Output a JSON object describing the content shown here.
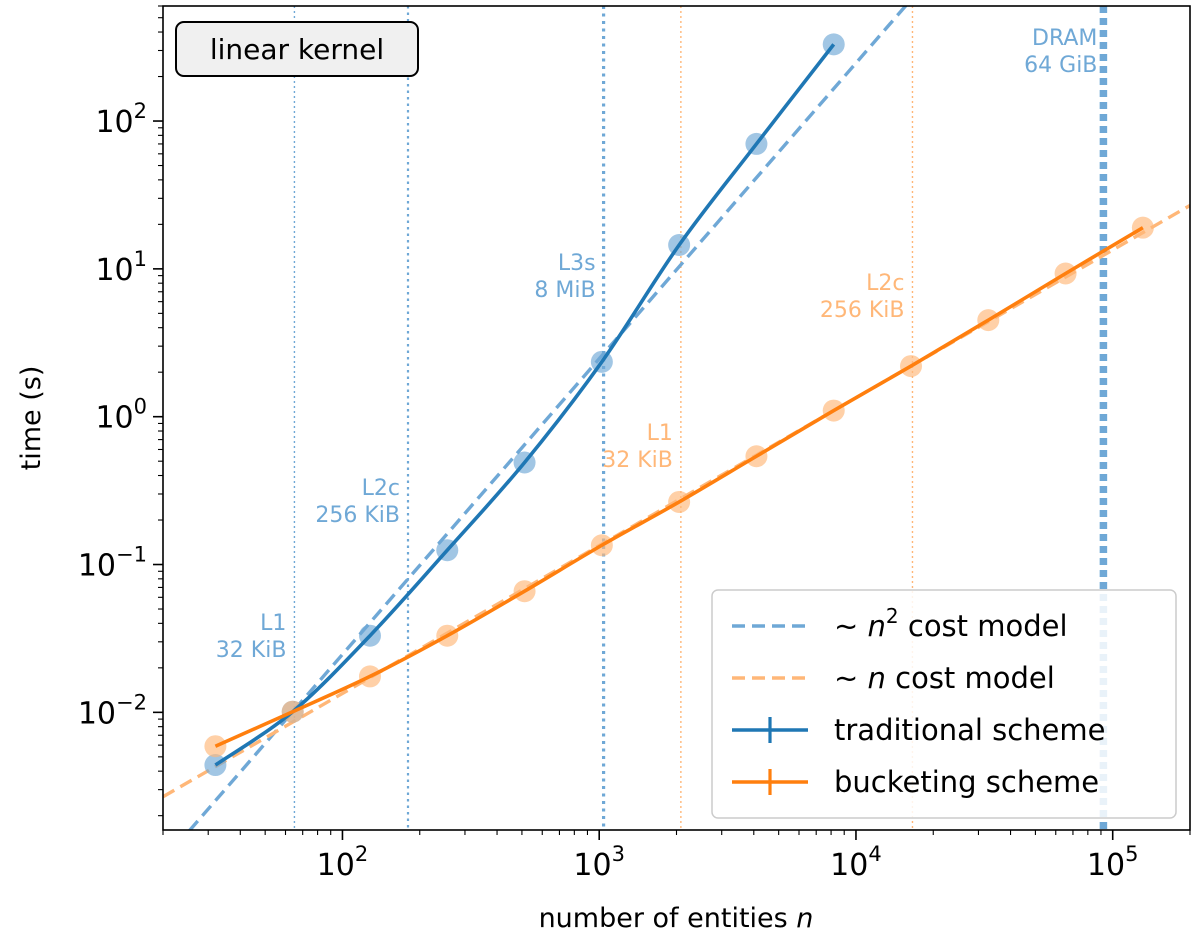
{
  "colors": {
    "traditional": "#1f77b4",
    "bucketing": "#ff7f0e",
    "traditional_light": "#6fa8d6",
    "bucketing_light": "#ffb778",
    "frame": "#000000"
  },
  "chart_data": {
    "type": "line",
    "x_scale": "log",
    "y_scale": "log",
    "xlabel": "number of entities n",
    "ylabel": "time (s)",
    "xlim": [
      20,
      200000
    ],
    "ylim": [
      0.0016,
      600
    ],
    "x_ticks": [
      {
        "value": 100,
        "base": "10",
        "exp": "2"
      },
      {
        "value": 1000,
        "base": "10",
        "exp": "3"
      },
      {
        "value": 10000,
        "base": "10",
        "exp": "4"
      },
      {
        "value": 100000,
        "base": "10",
        "exp": "5"
      }
    ],
    "y_ticks": [
      {
        "value": 0.01,
        "base": "10",
        "exp": "−2"
      },
      {
        "value": 0.1,
        "base": "10",
        "exp": "−1"
      },
      {
        "value": 1,
        "base": "10",
        "exp": "0"
      },
      {
        "value": 10,
        "base": "10",
        "exp": "1"
      },
      {
        "value": 100,
        "base": "10",
        "exp": "2"
      }
    ],
    "annotation": "linear kernel",
    "series": [
      {
        "name": "traditional scheme",
        "x": [
          32,
          64,
          128,
          256,
          512,
          1024,
          2048,
          4096,
          8192
        ],
        "y": [
          0.0044,
          0.0101,
          0.033,
          0.125,
          0.49,
          2.35,
          14.5,
          70,
          330
        ]
      },
      {
        "name": "bucketing scheme",
        "x": [
          32,
          64,
          128,
          256,
          512,
          1024,
          2048,
          4096,
          8192,
          16384,
          32768,
          65536,
          131072
        ],
        "y": [
          0.0059,
          0.0101,
          0.0175,
          0.033,
          0.066,
          0.135,
          0.265,
          0.54,
          1.1,
          2.2,
          4.5,
          9.3,
          19
        ]
      }
    ],
    "cost_models": [
      {
        "name": "~ n² cost model",
        "label_prefix": "∼",
        "label_var": "n",
        "label_power": "2",
        "label_suffix": "cost model",
        "exponent": 2,
        "x_ref": 64,
        "y_ref": 0.0101
      },
      {
        "name": "~ n cost model",
        "label_prefix": "∼",
        "label_var": "n",
        "label_power": "",
        "label_suffix": "cost model",
        "exponent": 1,
        "x_ref": 8192,
        "y_ref": 1.1
      }
    ],
    "cache_lines": [
      {
        "series": "traditional",
        "line1": "L1",
        "line2": "32 KiB",
        "x": 65,
        "style": "thin"
      },
      {
        "series": "traditional",
        "line1": "L2c",
        "line2": "256 KiB",
        "x": 180,
        "style": "medium"
      },
      {
        "series": "traditional",
        "line1": "L3s",
        "line2": "8 MiB",
        "x": 1040,
        "style": "thick"
      },
      {
        "series": "traditional",
        "line1": "DRAM",
        "line2": "64 GiB",
        "x": 92000,
        "style": "heavy"
      },
      {
        "series": "bucketing",
        "line1": "L1",
        "line2": "32 KiB",
        "x": 2080,
        "style": "thin"
      },
      {
        "series": "bucketing",
        "line1": "L2c",
        "line2": "256 KiB",
        "x": 16600,
        "style": "thin"
      }
    ],
    "legend": {
      "placement": "bottom-right",
      "entries": [
        {
          "label": "~ n² cost model",
          "kind": "dashed",
          "series": "traditional"
        },
        {
          "label": "~ n cost model",
          "kind": "dashed",
          "series": "bucketing"
        },
        {
          "label": "traditional scheme",
          "kind": "solid",
          "series": "traditional"
        },
        {
          "label": "bucketing scheme",
          "kind": "solid",
          "series": "bucketing"
        }
      ]
    },
    "grid": false
  }
}
